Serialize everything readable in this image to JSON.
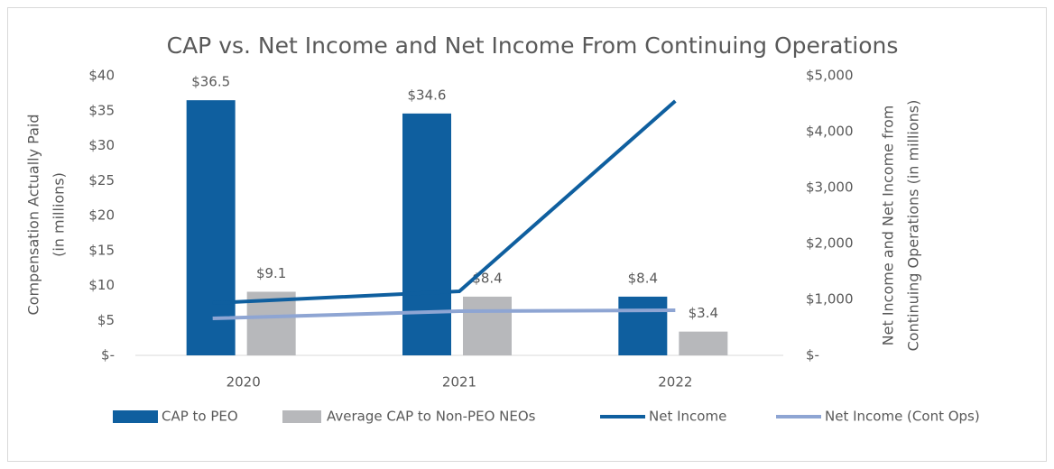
{
  "chart_data": {
    "type": "bar",
    "title": "CAP vs. Net Income and Net Income From Continuing Operations",
    "y_label": [
      "Compensation Actually Paid",
      "(in millions)"
    ],
    "y2_label": [
      "Net Income and Net Income from",
      "Continuing Operations (in millions)"
    ],
    "categories": [
      "2020",
      "2021",
      "2022"
    ],
    "series": [
      {
        "name": "CAP to PEO",
        "type": "bar",
        "color": "#0f5f9f",
        "values": [
          36.5,
          34.6,
          8.4
        ],
        "value_labels": [
          "$36.5",
          "$34.6",
          "$8.4"
        ]
      },
      {
        "name": "Average CAP to Non-PEO NEOs",
        "type": "bar",
        "color": "#b7b8bb",
        "values": [
          9.1,
          8.4,
          3.4
        ],
        "value_labels": [
          "$9.1",
          "$8.4",
          "$3.4"
        ]
      },
      {
        "name": "Net Income",
        "type": "line",
        "axis": "y2",
        "color": "#0f5f9f",
        "values": [
          935,
          1145,
          4548
        ]
      },
      {
        "name": "Net Income (Cont Ops)",
        "type": "line",
        "axis": "y2",
        "color": "#8ea5d3",
        "values": [
          661,
          790,
          806
        ]
      }
    ],
    "ylim": [
      0,
      40
    ],
    "yticks": [
      {
        "value": 0,
        "label": "$-"
      },
      {
        "value": 5,
        "label": "$5"
      },
      {
        "value": 10,
        "label": "$10"
      },
      {
        "value": 15,
        "label": "$15"
      },
      {
        "value": 20,
        "label": "$20"
      },
      {
        "value": 25,
        "label": "$25"
      },
      {
        "value": 30,
        "label": "$30"
      },
      {
        "value": 35,
        "label": "$35"
      },
      {
        "value": 40,
        "label": "$40"
      }
    ],
    "y2lim": [
      0,
      5000
    ],
    "y2ticks": [
      {
        "value": 0,
        "label": "$-"
      },
      {
        "value": 1000,
        "label": "$1,000"
      },
      {
        "value": 2000,
        "label": "$2,000"
      },
      {
        "value": 3000,
        "label": "$3,000"
      },
      {
        "value": 4000,
        "label": "$4,000"
      },
      {
        "value": 5000,
        "label": "$5,000"
      }
    ],
    "grid": false,
    "legend": "bottom"
  }
}
